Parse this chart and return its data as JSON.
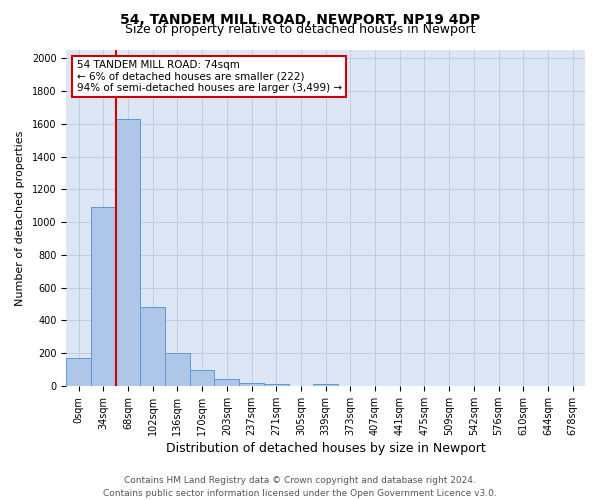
{
  "title": "54, TANDEM MILL ROAD, NEWPORT, NP19 4DP",
  "subtitle": "Size of property relative to detached houses in Newport",
  "xlabel": "Distribution of detached houses by size in Newport",
  "ylabel": "Number of detached properties",
  "bar_categories": [
    "0sqm",
    "34sqm",
    "68sqm",
    "102sqm",
    "136sqm",
    "170sqm",
    "203sqm",
    "237sqm",
    "271sqm",
    "305sqm",
    "339sqm",
    "373sqm",
    "407sqm",
    "441sqm",
    "475sqm",
    "509sqm",
    "542sqm",
    "576sqm",
    "610sqm",
    "644sqm",
    "678sqm"
  ],
  "bar_values": [
    170,
    1090,
    1630,
    480,
    200,
    100,
    40,
    20,
    15,
    0,
    15,
    0,
    0,
    0,
    0,
    0,
    0,
    0,
    0,
    0,
    0
  ],
  "bar_color": "#aec6e8",
  "bar_edge_color": "#5b9bd5",
  "vline_color": "#cc0000",
  "vline_index": 2.0,
  "annotation_title": "54 TANDEM MILL ROAD: 74sqm",
  "annotation_line1": "← 6% of detached houses are smaller (222)",
  "annotation_line2": "94% of semi-detached houses are larger (3,499) →",
  "annotation_box_facecolor": "#ffffff",
  "annotation_box_edgecolor": "#cc0000",
  "ylim": [
    0,
    2050
  ],
  "yticks": [
    0,
    200,
    400,
    600,
    800,
    1000,
    1200,
    1400,
    1600,
    1800,
    2000
  ],
  "background_color": "#dce6f5",
  "grid_color": "#c0c8d8",
  "footer_line1": "Contains HM Land Registry data © Crown copyright and database right 2024.",
  "footer_line2": "Contains public sector information licensed under the Open Government Licence v3.0.",
  "title_fontsize": 10,
  "subtitle_fontsize": 9,
  "xlabel_fontsize": 9,
  "ylabel_fontsize": 8,
  "tick_fontsize": 7,
  "annotation_fontsize": 7.5,
  "footer_fontsize": 6.5
}
